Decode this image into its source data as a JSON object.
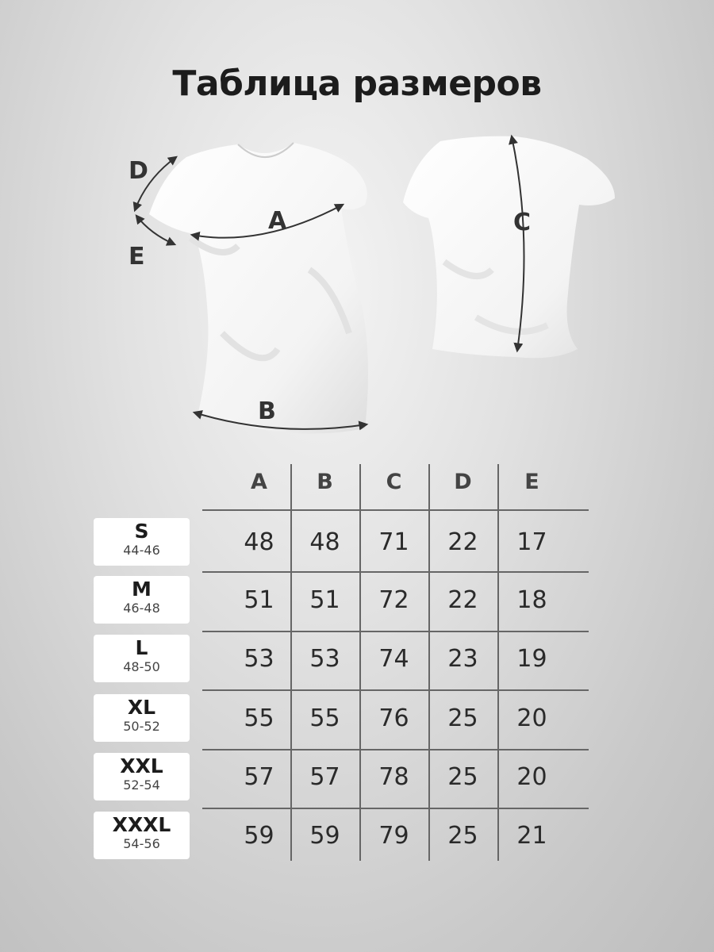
{
  "title": "Таблица размеров",
  "diagram_labels": {
    "A": "A",
    "B": "B",
    "C": "C",
    "D": "D",
    "E": "E"
  },
  "table": {
    "columns": [
      "A",
      "B",
      "C",
      "D",
      "E"
    ],
    "rows": [
      {
        "size": "S",
        "range": "44-46",
        "values": [
          "48",
          "48",
          "71",
          "22",
          "17"
        ]
      },
      {
        "size": "M",
        "range": "46-48",
        "values": [
          "51",
          "51",
          "72",
          "22",
          "18"
        ]
      },
      {
        "size": "L",
        "range": "48-50",
        "values": [
          "53",
          "53",
          "74",
          "23",
          "19"
        ]
      },
      {
        "size": "XL",
        "range": "50-52",
        "values": [
          "55",
          "55",
          "76",
          "25",
          "20"
        ]
      },
      {
        "size": "XXL",
        "range": "52-54",
        "values": [
          "57",
          "57",
          "78",
          "25",
          "20"
        ]
      },
      {
        "size": "XXXL",
        "range": "54-56",
        "values": [
          "59",
          "59",
          "79",
          "25",
          "21"
        ]
      }
    ]
  }
}
